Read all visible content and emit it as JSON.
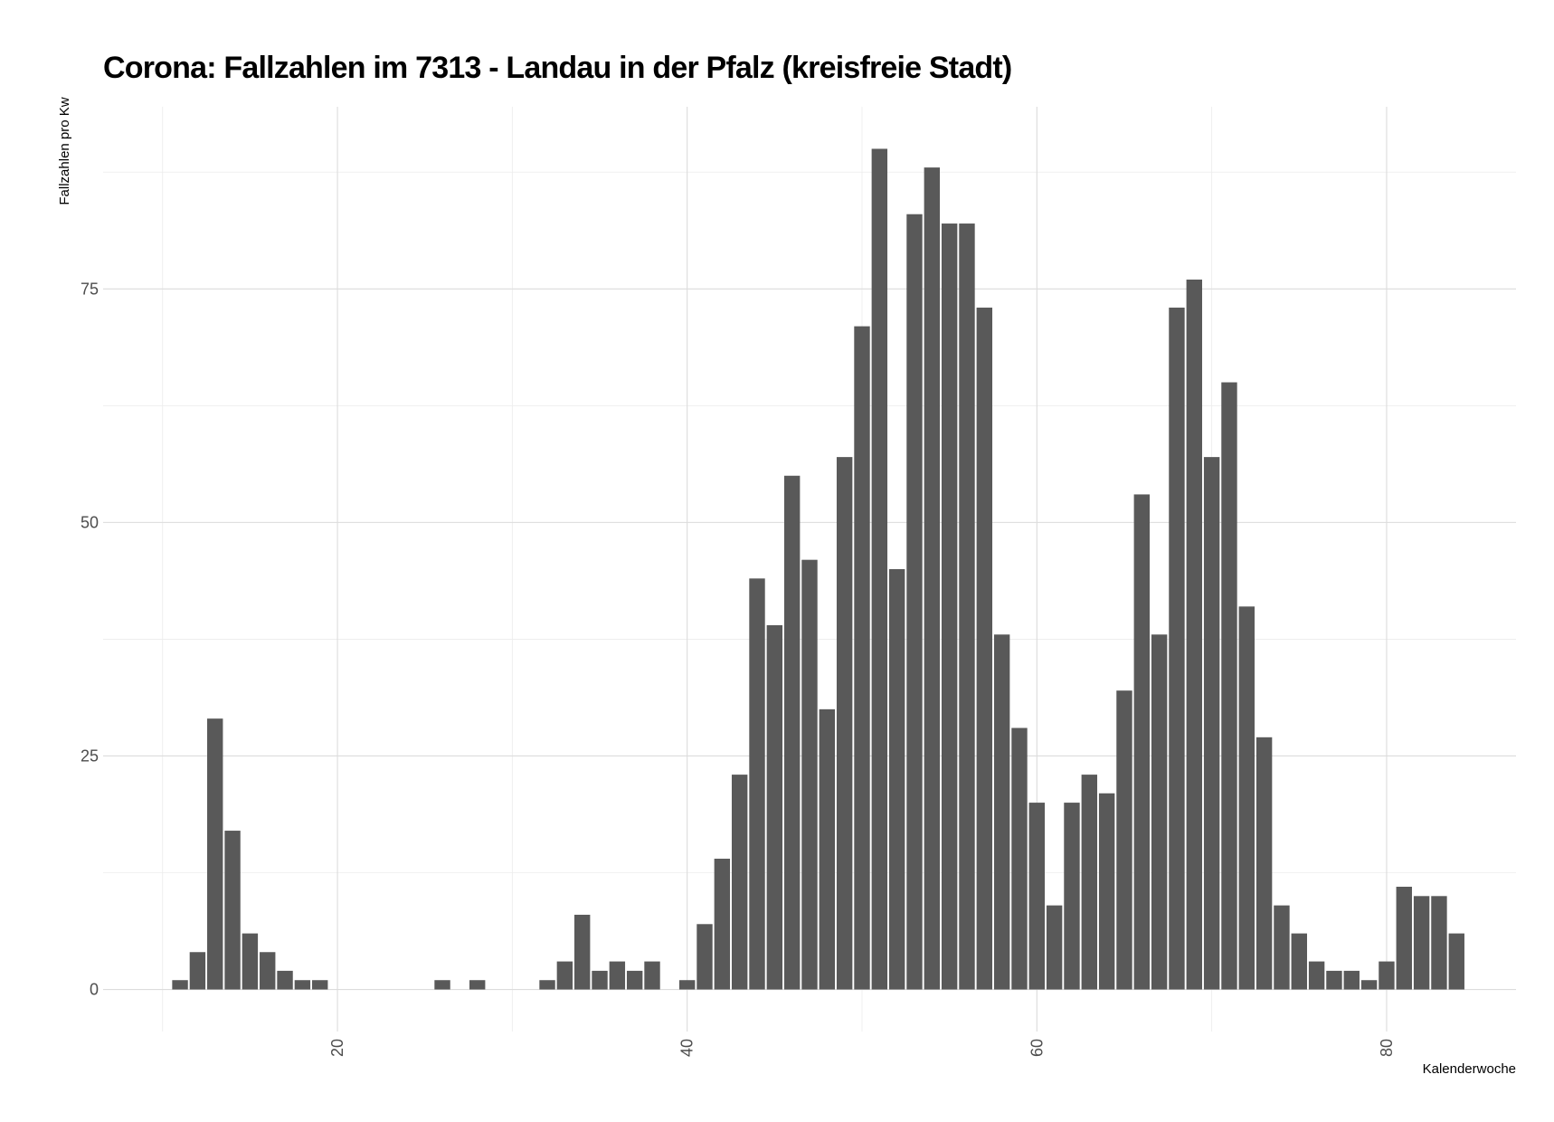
{
  "chart_data": {
    "type": "bar",
    "title": "Corona: Fallzahlen im 7313 - Landau in der Pfalz (kreisfreie Stadt)",
    "xlabel": "Kalenderwoche",
    "ylabel": "Fallzahlen pro Kw",
    "xlim": [
      6.6,
      87.4
    ],
    "ylim": [
      -4.5,
      94.5
    ],
    "x_ticks": [
      20,
      40,
      60,
      80
    ],
    "y_ticks": [
      0,
      25,
      50,
      75
    ],
    "grid": true,
    "bar_color": "#595959",
    "x": [
      11,
      12,
      13,
      14,
      15,
      16,
      17,
      18,
      19,
      20,
      21,
      22,
      23,
      24,
      25,
      26,
      27,
      28,
      29,
      30,
      31,
      32,
      33,
      34,
      35,
      36,
      37,
      38,
      39,
      40,
      41,
      42,
      43,
      44,
      45,
      46,
      47,
      48,
      49,
      50,
      51,
      52,
      53,
      54,
      55,
      56,
      57,
      58,
      59,
      60,
      61,
      62,
      63,
      64,
      65,
      66,
      67,
      68,
      69,
      70,
      71,
      72,
      73,
      74,
      75,
      76,
      77,
      78,
      79,
      80,
      81,
      82,
      83,
      84
    ],
    "values": [
      1,
      4,
      29,
      17,
      6,
      4,
      2,
      1,
      1,
      0,
      0,
      0,
      0,
      0,
      0,
      1,
      0,
      1,
      0,
      0,
      0,
      1,
      3,
      8,
      2,
      3,
      2,
      3,
      0,
      1,
      7,
      14,
      23,
      44,
      39,
      55,
      46,
      30,
      57,
      71,
      90,
      45,
      83,
      88,
      82,
      82,
      73,
      38,
      28,
      20,
      9,
      20,
      23,
      21,
      32,
      53,
      38,
      73,
      76,
      57,
      65,
      41,
      27,
      9,
      6,
      3,
      2,
      2,
      1,
      3,
      11,
      10,
      10,
      6
    ]
  }
}
